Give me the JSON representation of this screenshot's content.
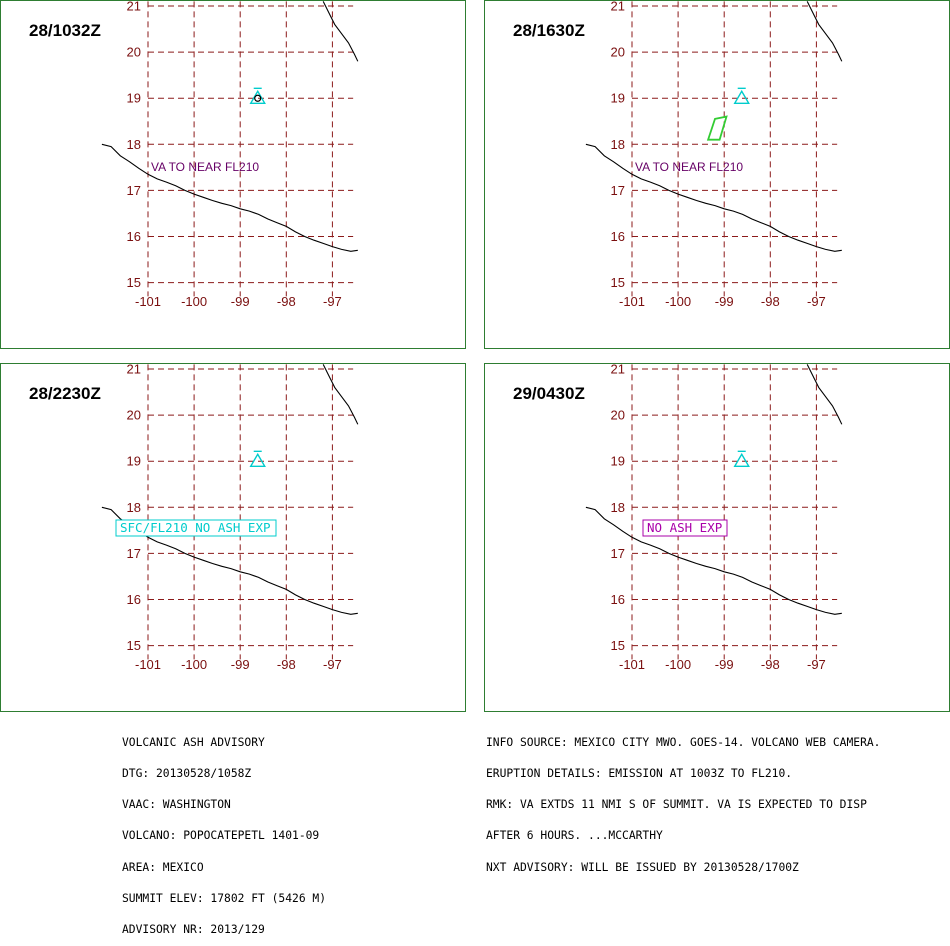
{
  "panels": [
    {
      "time": "28/1032Z",
      "label": "VA TO NEAR FL210",
      "label_style": "plain",
      "label_color": "#660066",
      "ash_polygon": []
    },
    {
      "time": "28/1630Z",
      "label": "VA TO NEAR FL210",
      "label_style": "plain",
      "label_color": "#660066",
      "ash_polygon": [
        [
          -99.2,
          18.55
        ],
        [
          -98.95,
          18.6
        ],
        [
          -99.1,
          18.1
        ],
        [
          -99.35,
          18.1
        ]
      ]
    },
    {
      "time": "28/2230Z",
      "label": "SFC/FL210 NO ASH EXP",
      "label_style": "boxed",
      "label_color": "#00cccc",
      "ash_polygon": []
    },
    {
      "time": "29/0430Z",
      "label": "NO ASH EXP",
      "label_style": "boxed",
      "label_color": "#aa00aa",
      "ash_polygon": []
    }
  ],
  "map": {
    "lat_labels": [
      "21",
      "20",
      "19",
      "18",
      "17",
      "16",
      "15"
    ],
    "lon_labels": [
      "-101",
      "-100",
      "-99",
      "-98",
      "-97"
    ],
    "volcano": {
      "lon": -98.62,
      "lat": 19.02,
      "icon": "volcano-triangle-icon",
      "color": "#00cccc"
    },
    "grid_color": "#8b1a1a",
    "ash_color": "#33cc33",
    "coastline_color": "#000000",
    "coast_south": [
      [
        -102.0,
        18.0
      ],
      [
        -101.8,
        17.95
      ],
      [
        -101.6,
        17.75
      ],
      [
        -101.4,
        17.62
      ],
      [
        -101.2,
        17.48
      ],
      [
        -101.0,
        17.35
      ],
      [
        -100.8,
        17.25
      ],
      [
        -100.6,
        17.18
      ],
      [
        -100.4,
        17.1
      ],
      [
        -100.2,
        17.0
      ],
      [
        -100.0,
        16.92
      ],
      [
        -99.8,
        16.85
      ],
      [
        -99.6,
        16.78
      ],
      [
        -99.4,
        16.72
      ],
      [
        -99.2,
        16.67
      ],
      [
        -99.0,
        16.6
      ],
      [
        -98.8,
        16.55
      ],
      [
        -98.6,
        16.48
      ],
      [
        -98.4,
        16.38
      ],
      [
        -98.2,
        16.3
      ],
      [
        -98.0,
        16.22
      ],
      [
        -97.8,
        16.1
      ],
      [
        -97.6,
        16.0
      ],
      [
        -97.4,
        15.92
      ],
      [
        -97.2,
        15.85
      ],
      [
        -97.0,
        15.78
      ],
      [
        -96.8,
        15.72
      ],
      [
        -96.6,
        15.68
      ],
      [
        -96.45,
        15.7
      ]
    ],
    "coast_north": [
      [
        -97.2,
        21.1
      ],
      [
        -97.05,
        20.8
      ],
      [
        -96.95,
        20.6
      ],
      [
        -96.8,
        20.4
      ],
      [
        -96.65,
        20.2
      ],
      [
        -96.52,
        19.95
      ],
      [
        -96.45,
        19.8
      ]
    ]
  },
  "advisory_left": [
    "VOLCANIC ASH ADVISORY",
    "DTG: 20130528/1058Z",
    "VAAC: WASHINGTON",
    "VOLCANO: POPOCATEPETL 1401-09",
    "AREA: MEXICO",
    "SUMMIT ELEV: 17802 FT (5426 M)",
    "ADVISORY NR: 2013/129"
  ],
  "advisory_right": [
    "INFO SOURCE: MEXICO CITY MWO. GOES-14. VOLCANO WEB CAMERA.",
    "ERUPTION DETAILS: EMISSION AT 1003Z TO FL210.",
    "RMK: VA EXTDS 11 NMI S OF SUMMIT. VA IS EXPECTED TO DISP",
    "AFTER 6 HOURS. ...MCCARTHY",
    "NXT ADVISORY: WILL BE ISSUED BY 20130528/1700Z"
  ]
}
